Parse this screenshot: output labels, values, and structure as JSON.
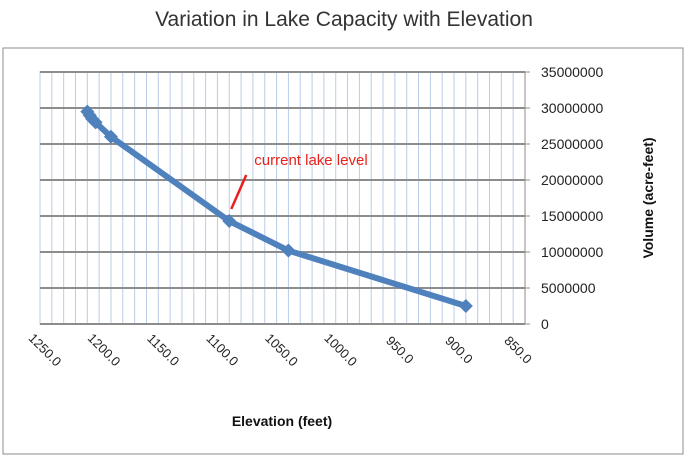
{
  "chart_data": {
    "type": "line",
    "title": "Variation in Lake Capacity with Elevation",
    "xlabel": "Elevation (feet)",
    "ylabel": "Volume (acre-feet)",
    "x_reversed": true,
    "xlim": [
      850,
      1260
    ],
    "ylim": [
      0,
      35000000
    ],
    "x_ticks": [
      1250,
      1200,
      1150,
      1100,
      1050,
      1000,
      950,
      900,
      850
    ],
    "x_tick_labels": [
      "1250.0",
      "1200.0",
      "1150.0",
      "1100.0",
      "1050.0",
      "1000.0",
      "950.0",
      "900.0",
      "850.0"
    ],
    "y_ticks": [
      0,
      5000000,
      10000000,
      15000000,
      20000000,
      25000000,
      30000000,
      35000000
    ],
    "y_tick_labels": [
      "0",
      "5000000",
      "10000000",
      "15000000",
      "20000000",
      "25000000",
      "30000000",
      "35000000"
    ],
    "y_axis_side": "right",
    "grid": true,
    "series": [
      {
        "color": "#4f81bd",
        "marker": "diamond",
        "x": [
          1220,
          1218,
          1216,
          1213,
          1200,
          1100,
          1050,
          900
        ],
        "y": [
          29500000,
          29000000,
          28500000,
          28000000,
          26000000,
          14300000,
          10200000,
          2500000
        ]
      }
    ],
    "annotation": {
      "text": "current lake level",
      "color": "#e8211c",
      "x": 1100,
      "y": 14300000
    }
  }
}
